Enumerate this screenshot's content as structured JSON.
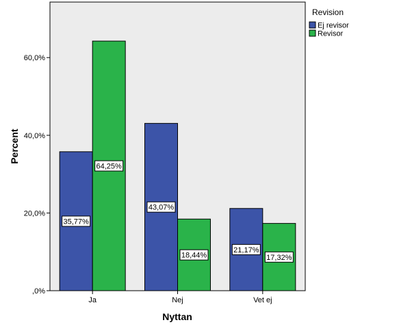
{
  "chart_data": {
    "type": "bar",
    "title": "",
    "xlabel": "Nyttan",
    "ylabel": "Percent",
    "categories": [
      "Ja",
      "Nej",
      "Vet ej"
    ],
    "ylim": [
      0,
      75
    ],
    "yticks": [
      {
        "value": 0,
        "label": ",0%"
      },
      {
        "value": 20,
        "label": "20,0%"
      },
      {
        "value": 40,
        "label": "40,0%"
      },
      {
        "value": 60,
        "label": "60,0%"
      }
    ],
    "grid": false,
    "legend": {
      "title": "Revision",
      "placement": "right"
    },
    "series": [
      {
        "name": "Ej revisor",
        "color": "#3c54a8",
        "values": [
          35.77,
          43.07,
          21.17
        ],
        "labels": [
          "35,77%",
          "43,07%",
          "21,17%"
        ]
      },
      {
        "name": "Revisor",
        "color": "#2ab34a",
        "values": [
          64.25,
          18.44,
          17.32
        ],
        "labels": [
          "64,25%",
          "18,44%",
          "17,32%"
        ]
      }
    ],
    "plot_background": "#ececec"
  }
}
